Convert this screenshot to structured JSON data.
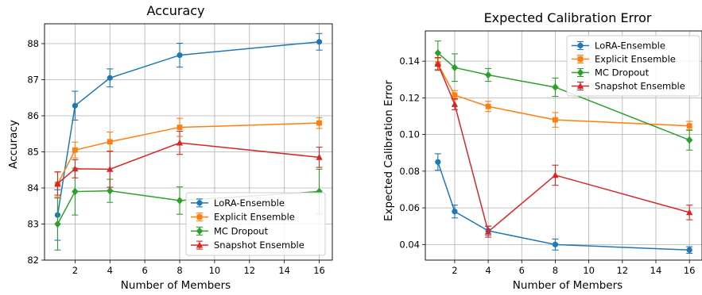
{
  "chart_data": [
    {
      "type": "line",
      "title": "Accuracy",
      "xlabel": "Number of Members",
      "ylabel": "Accuracy",
      "x": [
        1,
        2,
        4,
        8,
        16
      ],
      "xlim": [
        0.25,
        16.75
      ],
      "ylim": [
        82,
        88.55
      ],
      "xticks": [
        2,
        4,
        6,
        8,
        10,
        12,
        14,
        16
      ],
      "yticks": [
        82,
        83,
        84,
        85,
        86,
        87,
        88
      ],
      "ytick_format": 0,
      "grid": true,
      "legend_position": "lower right",
      "series": [
        {
          "name": "LoRA-Ensemble",
          "color": "#1f77b4",
          "marker": "circle",
          "values": [
            83.25,
            86.28,
            87.05,
            87.68,
            88.05
          ],
          "errors": [
            0.7,
            0.4,
            0.25,
            0.33,
            0.23
          ]
        },
        {
          "name": "Explicit Ensemble",
          "color": "#ff7f0e",
          "marker": "square",
          "values": [
            84.1,
            85.05,
            85.28,
            85.68,
            85.8
          ],
          "errors": [
            0.35,
            0.22,
            0.27,
            0.25,
            0.15
          ]
        },
        {
          "name": "MC Dropout",
          "color": "#2ca02c",
          "marker": "diamond",
          "values": [
            83.0,
            83.9,
            83.92,
            83.65,
            83.9
          ],
          "errors": [
            0.72,
            0.65,
            0.32,
            0.38,
            0.62
          ]
        },
        {
          "name": "Snapshot Ensemble",
          "color": "#d62728",
          "marker": "triangle",
          "values": [
            84.12,
            84.53,
            84.52,
            85.25,
            84.85
          ],
          "errors": [
            0.32,
            0.25,
            0.5,
            0.32,
            0.28
          ]
        }
      ]
    },
    {
      "type": "line",
      "title": "Expected Calibration Error",
      "xlabel": "Number of Members",
      "ylabel": "Expected Calibration Error",
      "x": [
        1,
        2,
        4,
        8,
        16
      ],
      "xlim": [
        0.25,
        16.75
      ],
      "ylim": [
        0.0315,
        0.1565
      ],
      "xticks": [
        2,
        4,
        6,
        8,
        10,
        12,
        14,
        16
      ],
      "yticks": [
        0.04,
        0.06,
        0.08,
        0.1,
        0.12,
        0.14
      ],
      "ytick_format": 2,
      "grid": true,
      "legend_position": "upper right",
      "series": [
        {
          "name": "LoRA-Ensemble",
          "color": "#1f77b4",
          "marker": "circle",
          "values": [
            0.085,
            0.058,
            0.0475,
            0.04,
            0.037
          ],
          "errors": [
            0.0045,
            0.0035,
            0.0025,
            0.003,
            0.0018
          ]
        },
        {
          "name": "Explicit Ensemble",
          "color": "#ff7f0e",
          "marker": "square",
          "values": [
            0.1385,
            0.1215,
            0.1153,
            0.108,
            0.1047
          ],
          "errors": [
            0.003,
            0.0025,
            0.0028,
            0.004,
            0.0025
          ]
        },
        {
          "name": "MC Dropout",
          "color": "#2ca02c",
          "marker": "diamond",
          "values": [
            0.1445,
            0.1365,
            0.1325,
            0.1258,
            0.097
          ],
          "errors": [
            0.0065,
            0.0075,
            0.0035,
            0.005,
            0.0055
          ]
        },
        {
          "name": "Snapshot Ensemble",
          "color": "#d62728",
          "marker": "triangle",
          "values": [
            0.1385,
            0.1165,
            0.047,
            0.0778,
            0.0575
          ],
          "errors": [
            0.0035,
            0.003,
            0.003,
            0.0055,
            0.004
          ]
        }
      ]
    }
  ]
}
